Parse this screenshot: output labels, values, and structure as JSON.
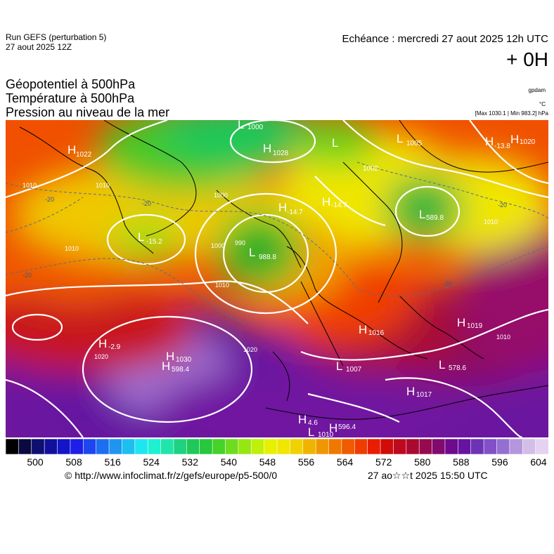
{
  "header": {
    "run_line": "Run GEFS (perturbation 5)",
    "run_date": "27 aout 2025 12Z",
    "echeance": "Echéance : mercredi 27 aout 2025 12h UTC",
    "offset": "+ 0H",
    "title_lines": [
      "Géopotentiel à 500hPa",
      "Température à 500hPa",
      "Pression au niveau de la mer"
    ],
    "unit_gpdam": "gpdam",
    "unit_c": "°C",
    "maxmin": "[Max 1030.1 | Min 983.2] hPa"
  },
  "map": {
    "pressure_labels": [
      {
        "text": "H",
        "sub": "1022"
      },
      {
        "text": "L",
        "sub": "1000"
      },
      {
        "text": "H",
        "sub": "1028"
      },
      {
        "text": "L",
        "sub": "1005"
      },
      {
        "text": "L",
        "sub": "1002"
      },
      {
        "text": "H",
        "sub": "1020"
      },
      {
        "text": "H",
        "sub": "-13.8"
      },
      {
        "text": "H",
        "sub": "-14.7"
      },
      {
        "text": "H",
        "sub": "-14.7"
      },
      {
        "text": "L",
        "sub": "-15.2"
      },
      {
        "text": "L",
        "sub": "988.8"
      },
      {
        "text": "L",
        "sub": "589.8"
      },
      {
        "text": "H",
        "sub": "1016"
      },
      {
        "text": "H",
        "sub": "1019"
      },
      {
        "text": "H",
        "sub": "-2.9"
      },
      {
        "text": "H",
        "sub": "1030"
      },
      {
        "text": "H",
        "sub": "598.4"
      },
      {
        "text": "L",
        "sub": "1007"
      },
      {
        "text": "L",
        "sub": "578.6"
      },
      {
        "text": "H",
        "sub": "1017"
      },
      {
        "text": "H",
        "sub": "4.6"
      },
      {
        "text": "H",
        "sub": "596.4"
      },
      {
        "text": "L",
        "sub": "1010"
      }
    ],
    "isobar_labels": [
      "1010",
      "1000",
      "990",
      "1010",
      "1020",
      "1020",
      "1010",
      "1010",
      "1000",
      "1010",
      "1010"
    ],
    "isotherm_labels": [
      "-20",
      "-20",
      "-20",
      "-20",
      "-20"
    ]
  },
  "colorbar": {
    "ticks": [
      "500",
      "508",
      "516",
      "524",
      "532",
      "540",
      "548",
      "556",
      "564",
      "572",
      "580",
      "588",
      "596",
      "604"
    ],
    "colors": [
      "#000000",
      "#0a0a40",
      "#0f0f70",
      "#10109c",
      "#1414c8",
      "#1e1ee8",
      "#1e46f0",
      "#1e6ef0",
      "#1e96f0",
      "#1ebef0",
      "#1ee6f0",
      "#1ef0d2",
      "#1ee6aa",
      "#1ed282",
      "#1ec85a",
      "#28c83c",
      "#46d228",
      "#6edc1e",
      "#96e614",
      "#bef00a",
      "#e6f000",
      "#f0e600",
      "#f0d200",
      "#f0b400",
      "#f09600",
      "#f07800",
      "#f05a00",
      "#f03c00",
      "#e81e00",
      "#d20a0a",
      "#be0a1e",
      "#aa0a32",
      "#960a50",
      "#820a6e",
      "#6e0a8c",
      "#6414a0",
      "#6e32b4",
      "#8250c8",
      "#966ed2",
      "#b496dc",
      "#d2bee6",
      "#e6d2f0"
    ]
  },
  "footer": {
    "url": "© http://www.infoclimat.fr/z/gefs/europe/p5-500/0",
    "timestamp": "27 ao☆☆t 2025 15:50 UTC"
  },
  "colors": {
    "cold": "#1e9628",
    "mid": "#f0e600",
    "warm": "#f05a00",
    "hot": "#be0a32",
    "high": "#6414a0"
  }
}
